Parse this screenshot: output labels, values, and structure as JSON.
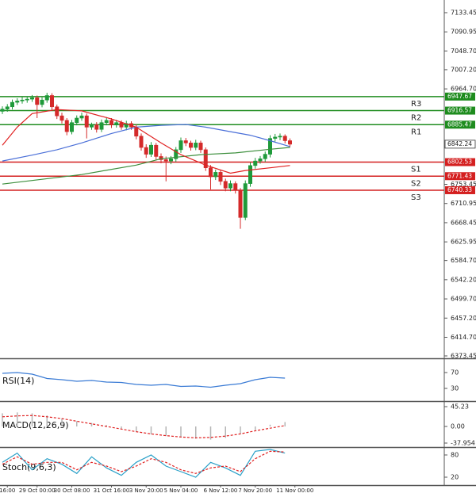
{
  "chart_data": {
    "type": "candlestick",
    "xlim": [
      -0.48,
      89.12
    ],
    "ylim": [
      6368.2,
      7161.5
    ],
    "xticks": [
      {
        "value": 1,
        "label": "16:00"
      },
      {
        "value": 7,
        "label": "29 Oct 00:00"
      },
      {
        "value": 14,
        "label": "30 Oct 08:00"
      },
      {
        "value": 22,
        "label": "31 Oct 16:00"
      },
      {
        "value": 29,
        "label": "3 Nov 20:00"
      },
      {
        "value": 36,
        "label": "5 Nov 04:00"
      },
      {
        "value": 44,
        "label": "6 Nov 12:00"
      },
      {
        "value": 51,
        "label": "7 Nov 20:00"
      },
      {
        "value": 59,
        "label": "11 Nov 00:00"
      }
    ],
    "yticks": [
      7133.45,
      7090.95,
      {
        "value": 7048.7,
        "label": "7048.70"
      },
      {
        "value": 7007.2,
        "label": "7007.20"
      },
      {
        "value": 6964.7,
        "label": "6964.70"
      },
      6753.45,
      6710.95,
      6668.45,
      6625.95,
      {
        "value": 6584.7,
        "label": "6584.70"
      },
      {
        "value": 6542.2,
        "label": "6542.20"
      },
      {
        "value": 6499.7,
        "label": "6499.70"
      },
      {
        "value": 6457.2,
        "label": "6457.20"
      },
      {
        "value": 6414.7,
        "label": "6414.70"
      },
      6373.45
    ],
    "up_color": "#1f9a3a",
    "down_color": "#d42a2a",
    "open": [
      6915,
      6920,
      6925,
      6935,
      6938,
      6940,
      6942,
      6945,
      6930,
      6940,
      6950,
      6925,
      6905,
      6895,
      6870,
      6890,
      6900,
      6905,
      6880,
      6885,
      6875,
      6890,
      6895,
      6885,
      6890,
      6880,
      6888,
      6880,
      6860,
      6835,
      6820,
      6840,
      6815,
      6808,
      6805,
      6810,
      6830,
      6850,
      6845,
      6835,
      6845,
      6830,
      6790,
      6770,
      6780,
      6760,
      6745,
      6755,
      6740,
      6680,
      6755,
      6795,
      6805,
      6810,
      6820,
      6855,
      6858,
      6860,
      6850
    ],
    "high": [
      6926,
      6931,
      6941,
      6944,
      6947,
      6948,
      6951,
      6950,
      6946,
      6956,
      6955,
      6930,
      6912,
      6900,
      6896,
      6906,
      6912,
      6910,
      6890,
      6891,
      6897,
      6902,
      6900,
      6896,
      6895,
      6894,
      6893,
      6886,
      6866,
      6842,
      6847,
      6845,
      6822,
      6815,
      6816,
      6836,
      6857,
      6856,
      6850,
      6852,
      6850,
      6835,
      6796,
      6786,
      6785,
      6766,
      6762,
      6760,
      6745,
      6762,
      6802,
      6812,
      6816,
      6826,
      6862,
      6865,
      6866,
      6864,
      6855
    ],
    "low": [
      6909,
      6914,
      6919,
      6929,
      6932,
      6934,
      6936,
      6900,
      6924,
      6934,
      6918,
      6898,
      6888,
      6862,
      6864,
      6884,
      6894,
      6855,
      6874,
      6868,
      6869,
      6884,
      6878,
      6879,
      6874,
      6873,
      6874,
      6853,
      6828,
      6812,
      6814,
      6808,
      6800,
      6760,
      6798,
      6803,
      6823,
      6838,
      6828,
      6829,
      6823,
      6783,
      6742,
      6763,
      6752,
      6738,
      6738,
      6733,
      6655,
      6674,
      6748,
      6788,
      6799,
      6803,
      6813,
      6848,
      6851,
      6844,
      6836
    ],
    "close": [
      6920,
      6925,
      6935,
      6938,
      6940,
      6942,
      6945,
      6930,
      6940,
      6950,
      6925,
      6905,
      6895,
      6870,
      6890,
      6900,
      6905,
      6880,
      6885,
      6875,
      6890,
      6895,
      6885,
      6890,
      6880,
      6888,
      6880,
      6860,
      6835,
      6820,
      6840,
      6815,
      6808,
      6805,
      6810,
      6830,
      6850,
      6845,
      6835,
      6845,
      6830,
      6790,
      6770,
      6780,
      6760,
      6745,
      6755,
      6740,
      6680,
      6755,
      6795,
      6805,
      6810,
      6820,
      6855,
      6858,
      6860,
      6850,
      6842.24
    ],
    "moving_averages": [
      {
        "color": "#3d8f3d",
        "x": [
          0,
          16,
          27,
          32,
          40,
          47,
          54,
          58
        ],
        "values": [
          6754,
          6775,
          6796,
          6810,
          6819,
          6823,
          6831,
          6835
        ]
      },
      {
        "color": "#4a6fd8",
        "x": [
          0,
          6,
          11,
          16,
          22,
          27,
          32,
          37,
          41,
          46,
          50,
          54,
          58
        ],
        "values": [
          6805,
          6818,
          6830,
          6845,
          6866,
          6880,
          6884,
          6886,
          6880,
          6870,
          6862,
          6850,
          6837
        ]
      },
      {
        "color": "#e02020",
        "x": [
          0,
          3,
          6,
          11,
          16,
          22,
          27,
          32,
          36,
          41,
          46,
          49,
          54,
          58
        ],
        "values": [
          6840,
          6880,
          6910,
          6919,
          6916,
          6898,
          6880,
          6845,
          6819,
          6796,
          6778,
          6784,
          6790,
          6795
        ]
      }
    ],
    "levels": [
      {
        "label": "R3",
        "value": 6947.67,
        "color": "#1e8c1e"
      },
      {
        "label": "R2",
        "value": 6916.57,
        "color": "#1e8c1e"
      },
      {
        "label": "R1",
        "value": 6885.47,
        "color": "#1e8c1e"
      },
      {
        "label": "S1",
        "value": 6802.53,
        "color": "#d42020"
      },
      {
        "label": "S2",
        "value": 6771.43,
        "color": "#d42020"
      },
      {
        "label": "S3",
        "value": 6740.33,
        "color": "#d42020"
      }
    ],
    "indicators": [
      {
        "type": "rsi",
        "label": "RSI(14)",
        "ylim": [
          0,
          100
        ],
        "yticks": [
          70,
          30
        ],
        "series": [
          {
            "color": "#3a7bd5",
            "dash": false,
            "x": [
              0,
              3,
              6,
              9,
              12,
              15,
              18,
              21,
              24,
              27,
              30,
              33,
              36,
              39,
              42,
              45,
              48,
              51,
              54,
              57
            ],
            "values": [
              68,
              70,
              66,
              55,
              52,
              48,
              50,
              46,
              45,
              40,
              38,
              40,
              35,
              36,
              33,
              38,
              42,
              52,
              58,
              56
            ]
          }
        ]
      },
      {
        "type": "macd",
        "label": "MACD(12,26,9)",
        "ylim": [
          -45.23,
          54.28
        ],
        "yticks": [
          45.23,
          {
            "value": 0,
            "label": "0.00"
          },
          -37.954
        ],
        "histogram": {
          "color": "#b5b5b5",
          "x": [
            0,
            3,
            6,
            9,
            12,
            15,
            18,
            21,
            24,
            27,
            30,
            33,
            36,
            39,
            42,
            45,
            48,
            51,
            54,
            57
          ],
          "values": [
            30,
            32,
            30,
            25,
            18,
            12,
            8,
            3,
            -5,
            -12,
            -18,
            -22,
            -25,
            -28,
            -30,
            -26,
            -18,
            -8,
            4,
            10
          ]
        },
        "series": [
          {
            "color": "#e02020",
            "dash": true,
            "x": [
              0,
              3,
              6,
              9,
              12,
              15,
              18,
              21,
              24,
              27,
              30,
              33,
              36,
              39,
              42,
              45,
              48,
              51,
              54,
              57
            ],
            "values": [
              22,
              24,
              25,
              22,
              18,
              12,
              6,
              0,
              -6,
              -12,
              -17,
              -21,
              -24,
              -26,
              -25,
              -22,
              -17,
              -10,
              -4,
              2
            ]
          }
        ]
      },
      {
        "type": "stoch",
        "label": "Stoch(9,6,3)",
        "ylim": [
          0.7,
          97.1
        ],
        "yticks": [
          80,
          20
        ],
        "series": [
          {
            "color": "#2aa0c8",
            "dash": false,
            "x": [
              0,
              3,
              6,
              9,
              12,
              15,
              18,
              21,
              24,
              27,
              30,
              33,
              36,
              39,
              42,
              45,
              48,
              51,
              54,
              57
            ],
            "values": [
              60,
              85,
              40,
              70,
              55,
              30,
              75,
              45,
              25,
              60,
              80,
              50,
              35,
              20,
              60,
              45,
              25,
              90,
              95,
              85
            ]
          },
          {
            "color": "#e02020",
            "dash": true,
            "x": [
              0,
              3,
              6,
              9,
              12,
              15,
              18,
              21,
              24,
              27,
              30,
              33,
              36,
              39,
              42,
              45,
              48,
              51,
              54,
              57
            ],
            "values": [
              55,
              75,
              55,
              60,
              60,
              40,
              60,
              50,
              35,
              50,
              70,
              60,
              40,
              30,
              45,
              50,
              35,
              70,
              90,
              88
            ]
          }
        ]
      }
    ]
  }
}
